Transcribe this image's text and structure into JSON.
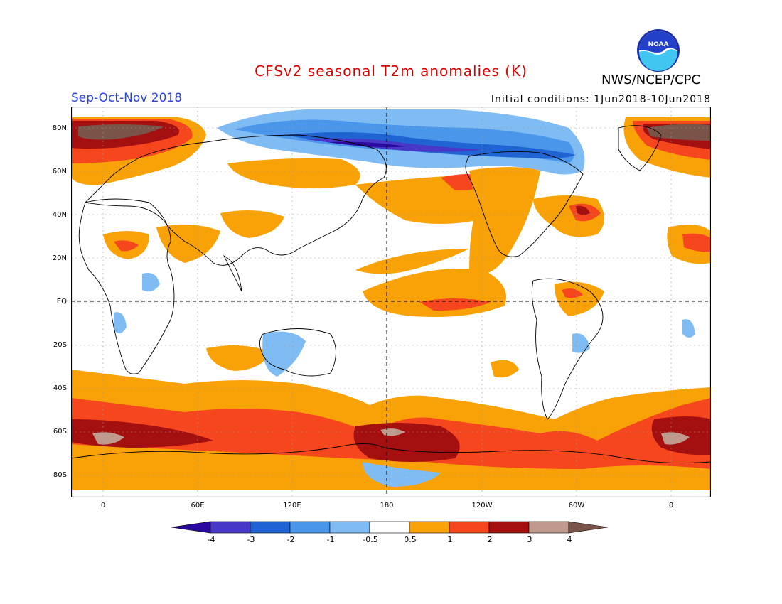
{
  "title": "CFSv2 seasonal T2m anomalies (K)",
  "organization": "NWS/NCEP/CPC",
  "logo_text": "NOAA",
  "season": "Sep-Oct-Nov 2018",
  "initial_conditions": "Initial conditions: 1Jun2018-10Jun2018",
  "colors": {
    "title": "#dd0000",
    "season": "#2a46d8",
    "frame": "#000000"
  },
  "lat_labels": [
    "80N",
    "60N",
    "40N",
    "20N",
    "EQ",
    "20S",
    "40S",
    "60S",
    "80S"
  ],
  "lon_labels": [
    "0",
    "60E",
    "120E",
    "180",
    "120W",
    "60W",
    "0"
  ],
  "colorbar": {
    "labels": [
      "-4",
      "-3",
      "-2",
      "-1",
      "-0.5",
      "0.5",
      "1",
      "2",
      "3",
      "4"
    ],
    "bins": [
      {
        "range": "< -4",
        "color": "#2a0a9e"
      },
      {
        "range": "-4 to -3",
        "color": "#4838c8"
      },
      {
        "range": "-3 to -2",
        "color": "#1f64d2"
      },
      {
        "range": "-2 to -1",
        "color": "#4a96eb"
      },
      {
        "range": "-1 to -0.5",
        "color": "#80bcf4"
      },
      {
        "range": "-0.5 to 0.5",
        "color": "#ffffff"
      },
      {
        "range": "0.5 to 1",
        "color": "#f9a208"
      },
      {
        "range": "1 to 2",
        "color": "#f6461e"
      },
      {
        "range": "2 to 3",
        "color": "#a40f0f"
      },
      {
        "range": "3 to 4",
        "color": "#c09a8c"
      },
      {
        "range": "> 4",
        "color": "#7a5448"
      }
    ]
  }
}
